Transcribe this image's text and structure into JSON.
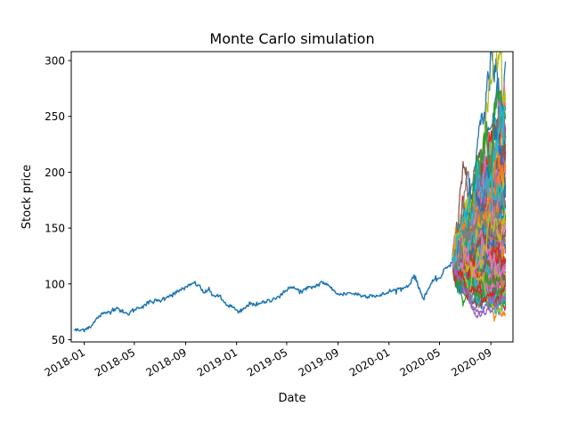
{
  "chart_data": {
    "type": "line",
    "title": "Monte Carlo simulation",
    "xlabel": "Date",
    "ylabel": "Stock price",
    "grid": false,
    "legend": "none",
    "xlim": [
      "2017-12-01",
      "2020-10-24"
    ],
    "ylim": [
      48,
      308
    ],
    "x_ticks": [
      "2018-01",
      "2018-05",
      "2018-09",
      "2019-01",
      "2019-05",
      "2019-09",
      "2020-01",
      "2020-05",
      "2020-09"
    ],
    "y_ticks": [
      50,
      100,
      150,
      200,
      250,
      300
    ],
    "historical": {
      "color": "#1f77b4",
      "x": [
        "2017-12-08",
        "2017-12-20",
        "2018-01-05",
        "2018-01-20",
        "2018-02-05",
        "2018-02-15",
        "2018-03-01",
        "2018-03-20",
        "2018-04-05",
        "2018-04-15",
        "2018-05-01",
        "2018-05-20",
        "2018-06-10",
        "2018-07-01",
        "2018-07-20",
        "2018-08-10",
        "2018-08-25",
        "2018-09-05",
        "2018-09-20",
        "2018-10-01",
        "2018-10-15",
        "2018-10-25",
        "2018-11-05",
        "2018-11-20",
        "2018-12-01",
        "2018-12-10",
        "2018-12-24",
        "2019-01-05",
        "2019-01-20",
        "2019-02-05",
        "2019-02-20",
        "2019-03-10",
        "2019-04-01",
        "2019-04-20",
        "2019-05-05",
        "2019-05-20",
        "2019-06-05",
        "2019-06-20",
        "2019-07-10",
        "2019-07-25",
        "2019-08-05",
        "2019-08-20",
        "2019-09-05",
        "2019-09-25",
        "2019-10-15",
        "2019-11-01",
        "2019-11-20",
        "2019-12-10",
        "2020-01-01",
        "2020-01-20",
        "2020-02-05",
        "2020-02-20",
        "2020-03-01",
        "2020-03-10",
        "2020-03-23",
        "2020-04-05",
        "2020-04-20",
        "2020-05-05",
        "2020-05-15",
        "2020-06-01"
      ],
      "y": [
        59,
        58,
        60,
        63,
        71,
        73,
        75,
        79,
        74,
        73,
        77,
        80,
        84,
        85,
        89,
        92,
        96,
        97,
        101,
        99,
        92,
        95,
        90,
        89,
        84,
        81,
        79,
        74,
        78,
        83,
        81,
        84,
        87,
        90,
        97,
        96,
        93,
        96,
        98,
        102,
        99,
        95,
        90,
        92,
        91,
        89,
        90,
        89,
        93,
        95,
        96,
        100,
        108,
        99,
        87,
        96,
        104,
        106,
        114,
        119
      ]
    },
    "simulation": {
      "paths": 100,
      "start": "2020-06-01",
      "end": "2020-10-06",
      "start_value": 122,
      "final_min": 73,
      "final_max": 299,
      "colors": [
        "#1f77b4",
        "#ff7f0e",
        "#2ca02c",
        "#d62728",
        "#9467bd",
        "#8c564b",
        "#e377c2",
        "#7f7f7f",
        "#bcbd22",
        "#17becf"
      ]
    }
  }
}
